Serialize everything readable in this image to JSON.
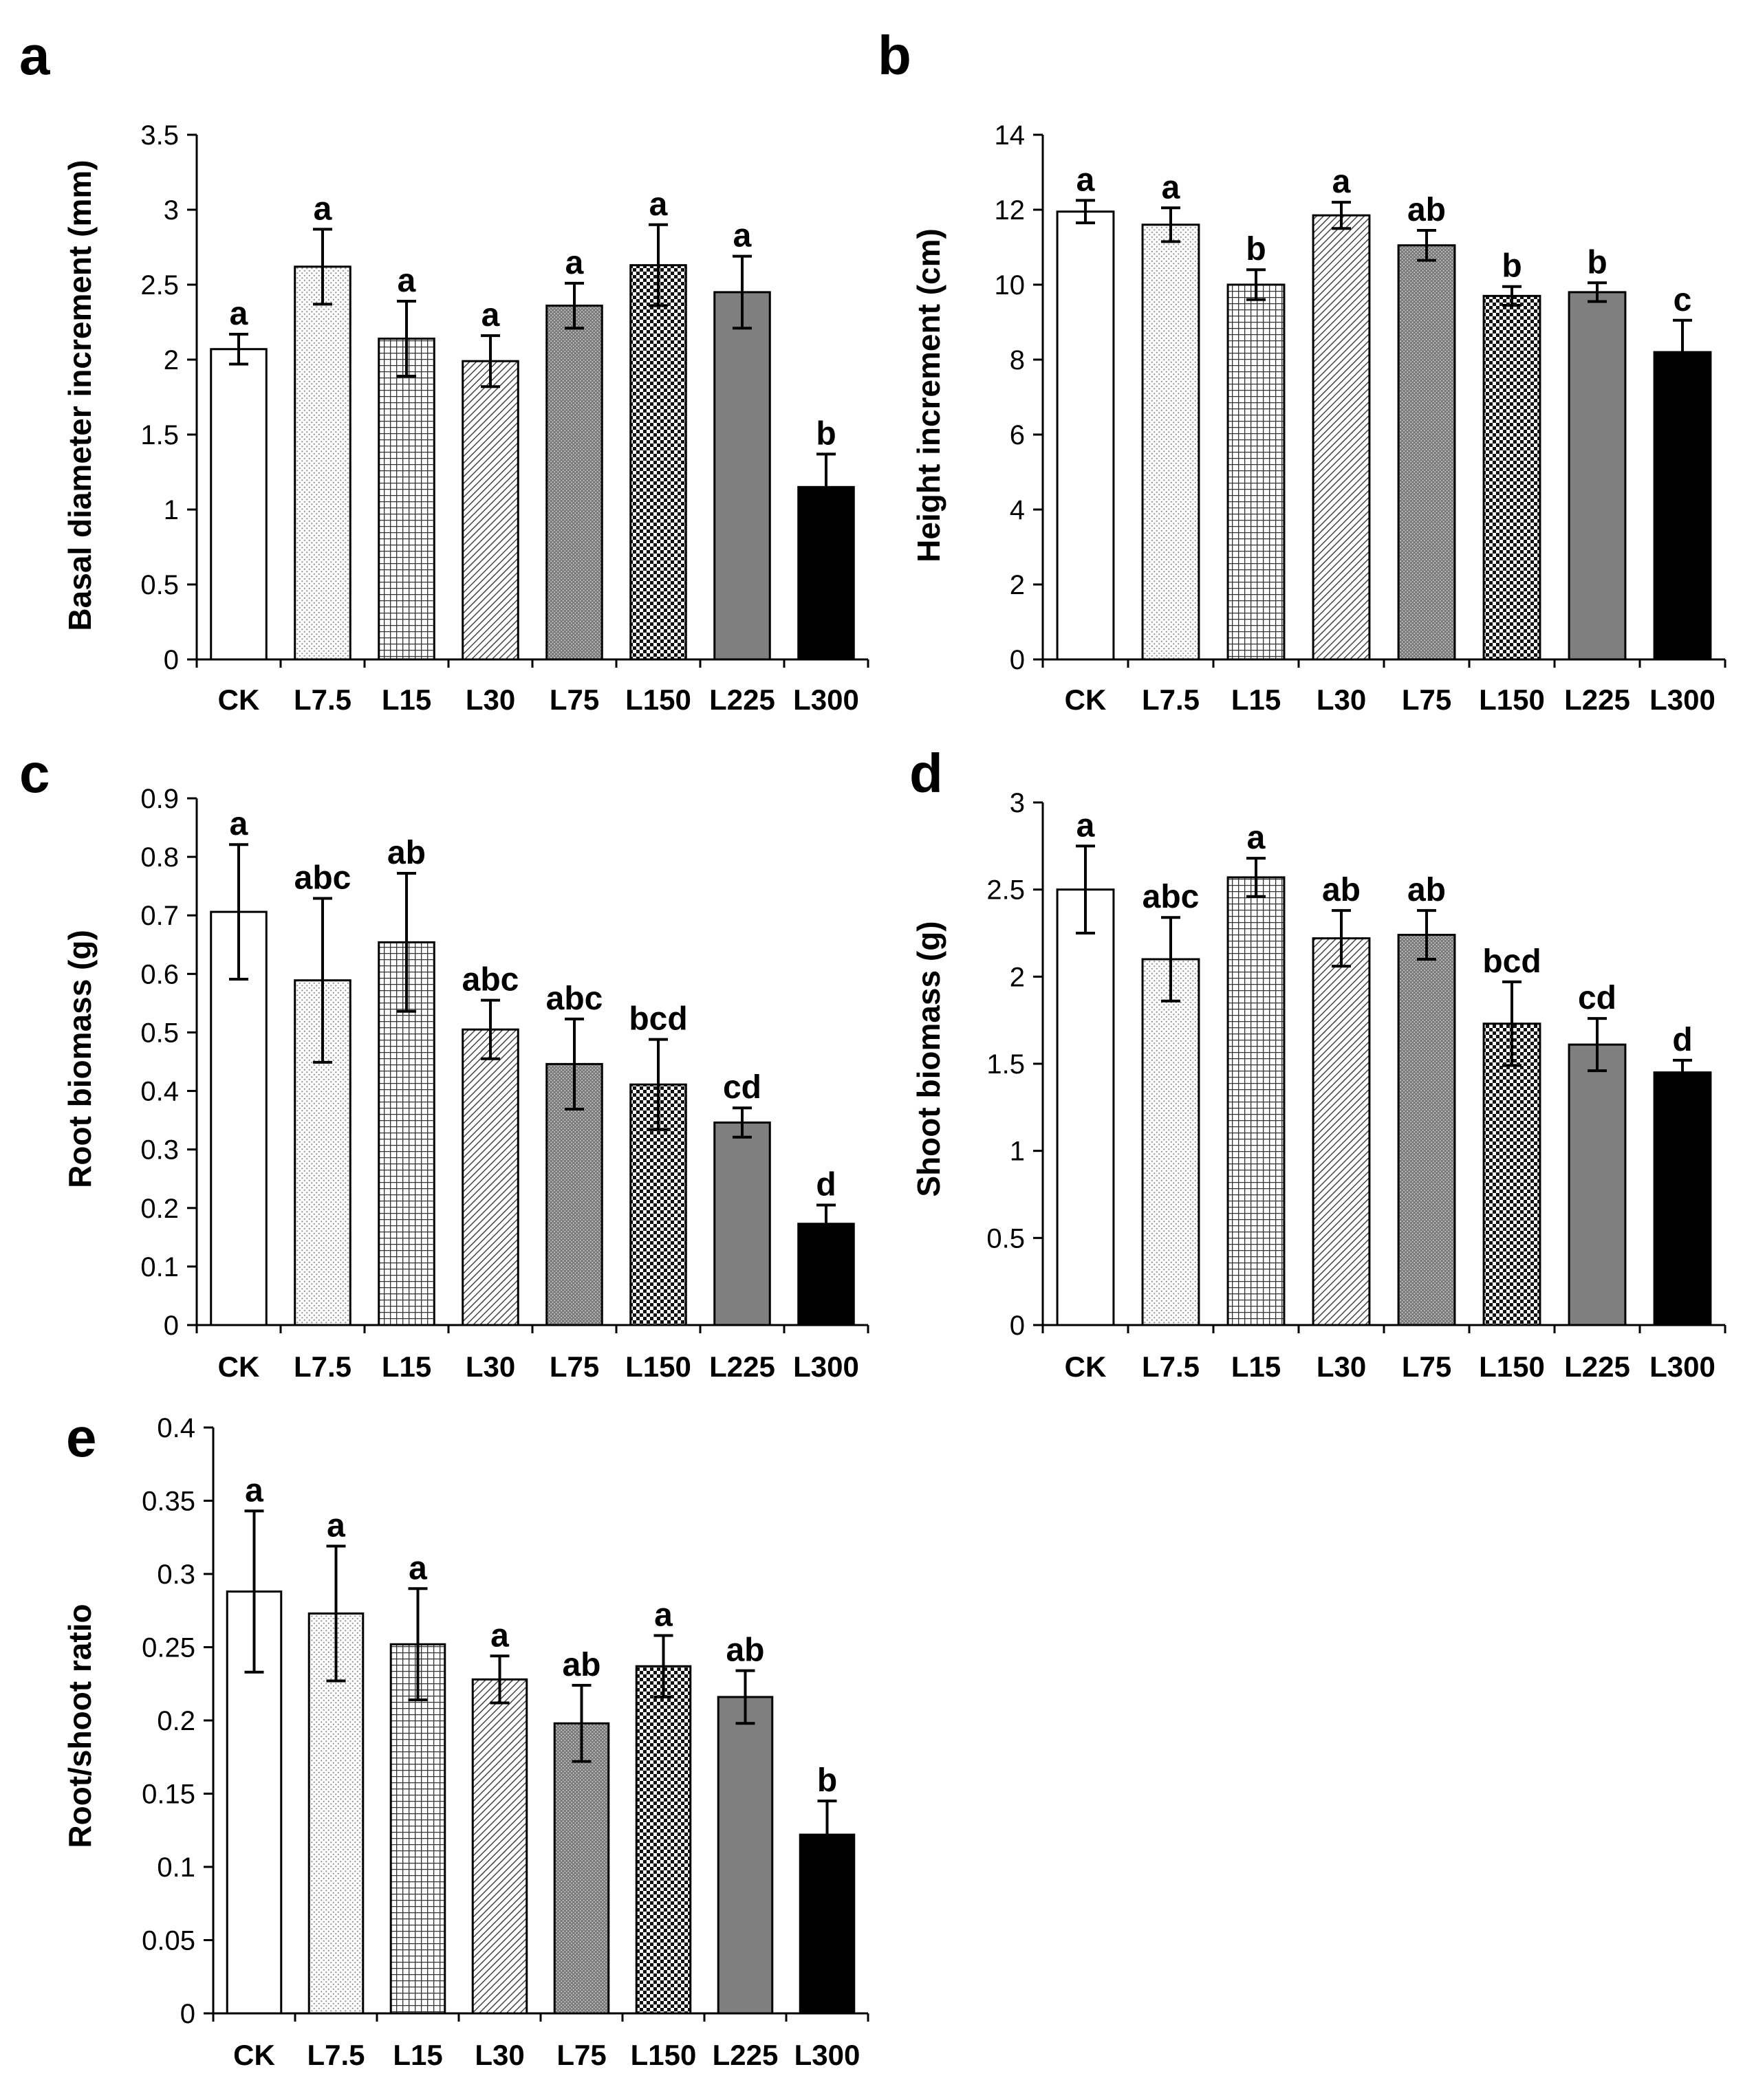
{
  "figure": {
    "categories": [
      "CK",
      "L7.5",
      "L15",
      "L30",
      "L75",
      "L150",
      "L225",
      "L300"
    ],
    "bar_fills": {
      "CK": "white",
      "L7.5": "fine-dots",
      "L15": "small-grid",
      "L30": "diagonal-lines",
      "L75": "dark-dots",
      "L150": "checkerboard",
      "L225": "solid-gray",
      "L300": "solid-black"
    },
    "colors": {
      "axis": "#000000",
      "bar_outline": "#000000",
      "gray_fill": "#7f7f7f",
      "black_fill": "#000000",
      "background": "#ffffff"
    }
  },
  "chart_data": [
    {
      "panel": "a",
      "type": "bar",
      "ylabel": "Basal diameter increment (mm)",
      "categories": [
        "CK",
        "L7.5",
        "L15",
        "L30",
        "L75",
        "L150",
        "L225",
        "L300"
      ],
      "values": [
        2.07,
        2.62,
        2.14,
        1.99,
        2.36,
        2.63,
        2.45,
        1.15
      ],
      "errors": [
        0.1,
        0.25,
        0.25,
        0.17,
        0.15,
        0.27,
        0.24,
        0.22
      ],
      "significance": [
        "a",
        "a",
        "a",
        "a",
        "a",
        "a",
        "a",
        "b"
      ],
      "ylim": [
        0,
        3.5
      ],
      "yticks": [
        0,
        0.5,
        1,
        1.5,
        2,
        2.5,
        3,
        3.5
      ],
      "ytick_labels": [
        "0",
        "0.5",
        "1",
        "1.5",
        "2",
        "2.5",
        "3",
        "3.5"
      ]
    },
    {
      "panel": "b",
      "type": "bar",
      "ylabel": "Height increment (cm)",
      "categories": [
        "CK",
        "L7.5",
        "L15",
        "L30",
        "L75",
        "L150",
        "L225",
        "L300"
      ],
      "values": [
        11.95,
        11.6,
        10.0,
        11.85,
        11.05,
        9.7,
        9.8,
        8.2
      ],
      "errors": [
        0.3,
        0.45,
        0.4,
        0.35,
        0.4,
        0.25,
        0.25,
        0.85
      ],
      "significance": [
        "a",
        "a",
        "b",
        "a",
        "ab",
        "b",
        "b",
        "c"
      ],
      "ylim": [
        0,
        14
      ],
      "yticks": [
        0,
        2,
        4,
        6,
        8,
        10,
        12,
        14
      ],
      "ytick_labels": [
        "0",
        "2",
        "4",
        "6",
        "8",
        "10",
        "12",
        "14"
      ]
    },
    {
      "panel": "c",
      "type": "bar",
      "ylabel": "Root biomass (g)",
      "categories": [
        "CK",
        "L7.5",
        "L15",
        "L30",
        "L75",
        "L150",
        "L225",
        "L300"
      ],
      "values": [
        0.706,
        0.589,
        0.654,
        0.505,
        0.446,
        0.411,
        0.346,
        0.173
      ],
      "errors": [
        0.115,
        0.14,
        0.118,
        0.05,
        0.077,
        0.077,
        0.025,
        0.032
      ],
      "significance": [
        "a",
        "abc",
        "ab",
        "abc",
        "abc",
        "bcd",
        "cd",
        "d"
      ],
      "ylim": [
        0,
        0.9
      ],
      "yticks": [
        0,
        0.1,
        0.2,
        0.3,
        0.4,
        0.5,
        0.6,
        0.7,
        0.8,
        0.9
      ],
      "ytick_labels": [
        "0",
        "0.1",
        "0.2",
        "0.3",
        "0.4",
        "0.5",
        "0.6",
        "0.7",
        "0.8",
        "0.9"
      ]
    },
    {
      "panel": "d",
      "type": "bar",
      "ylabel": "Shoot biomass (g)",
      "categories": [
        "CK",
        "L7.5",
        "L15",
        "L30",
        "L75",
        "L150",
        "L225",
        "L300"
      ],
      "values": [
        2.5,
        2.1,
        2.57,
        2.22,
        2.24,
        1.73,
        1.61,
        1.45
      ],
      "errors": [
        0.25,
        0.24,
        0.11,
        0.16,
        0.14,
        0.24,
        0.15,
        0.07
      ],
      "significance": [
        "a",
        "abc",
        "a",
        "ab",
        "ab",
        "bcd",
        "cd",
        "d"
      ],
      "ylim": [
        0,
        3
      ],
      "yticks": [
        0,
        0.5,
        1,
        1.5,
        2,
        2.5,
        3
      ],
      "ytick_labels": [
        "0",
        "0.5",
        "1",
        "1.5",
        "2",
        "2.5",
        "3"
      ]
    },
    {
      "panel": "e",
      "type": "bar",
      "ylabel": "Root/shoot ratio",
      "categories": [
        "CK",
        "L7.5",
        "L15",
        "L30",
        "L75",
        "L150",
        "L225",
        "L300"
      ],
      "values": [
        0.288,
        0.273,
        0.252,
        0.228,
        0.198,
        0.237,
        0.216,
        0.122
      ],
      "errors": [
        0.055,
        0.046,
        0.038,
        0.016,
        0.026,
        0.021,
        0.018,
        0.023
      ],
      "significance": [
        "a",
        "a",
        "a",
        "a",
        "ab",
        "a",
        "ab",
        "b"
      ],
      "ylim": [
        0,
        0.4
      ],
      "yticks": [
        0,
        0.05,
        0.1,
        0.15,
        0.2,
        0.25,
        0.3,
        0.35,
        0.4
      ],
      "ytick_labels": [
        "0",
        "0.05",
        "0.1",
        "0.15",
        "0.2",
        "0.25",
        "0.3",
        "0.35",
        "0.4"
      ]
    }
  ]
}
